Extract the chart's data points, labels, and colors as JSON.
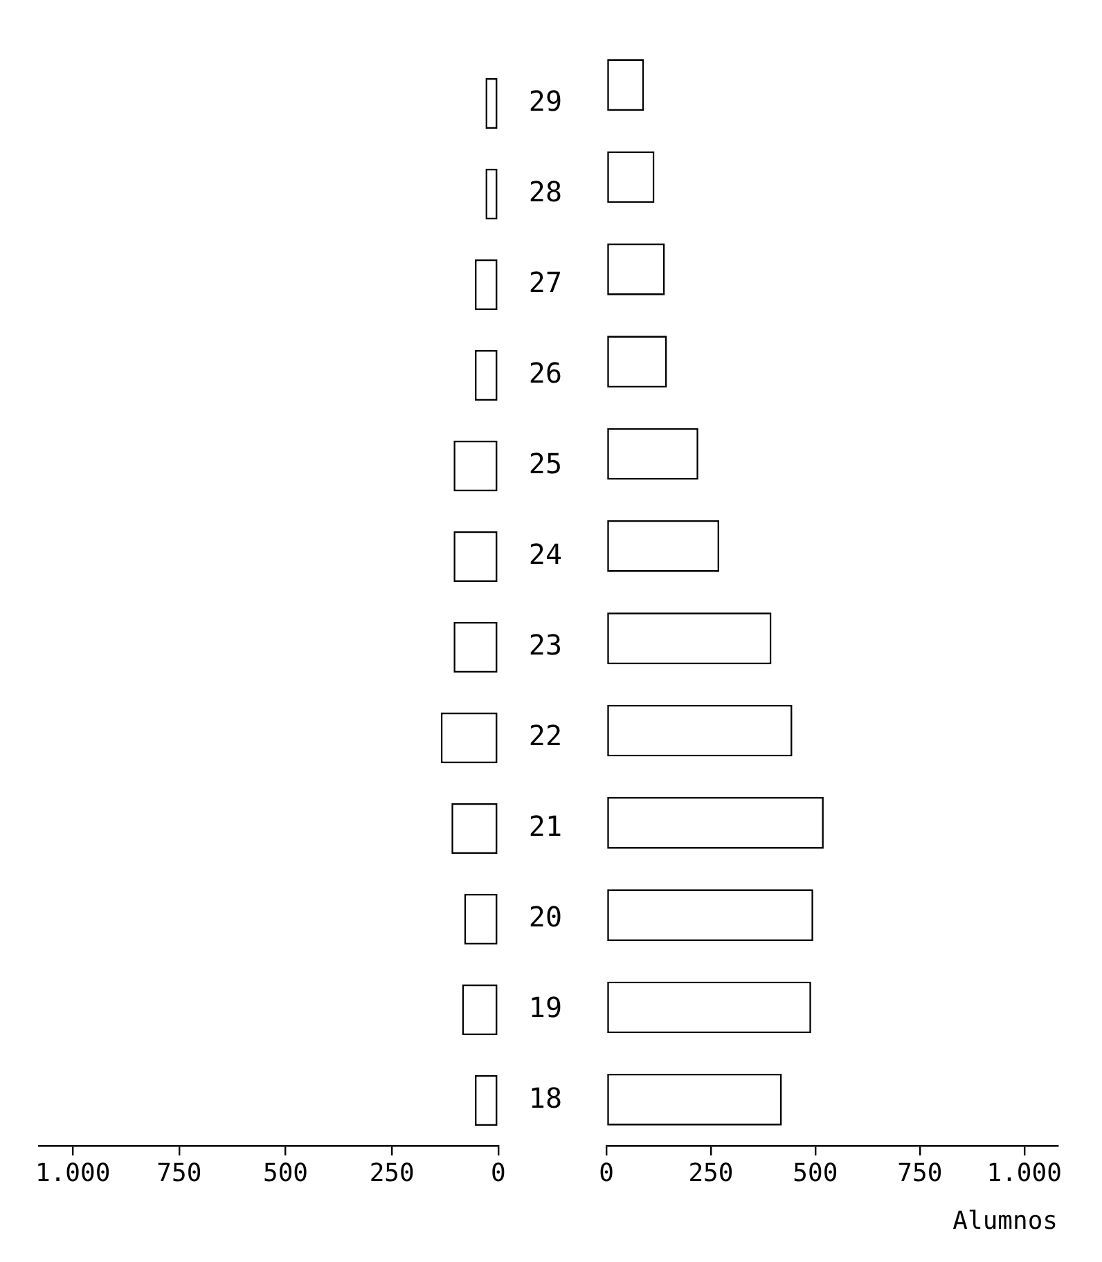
{
  "chart_data": [
    {
      "type": "bar",
      "orientation": "horizontal",
      "categories": [
        "29",
        "28",
        "27",
        "26",
        "25",
        "24",
        "23",
        "22",
        "21",
        "20",
        "19",
        "18"
      ],
      "values": [
        30,
        30,
        55,
        55,
        105,
        105,
        105,
        135,
        110,
        80,
        85,
        55
      ],
      "color": "#ffffff",
      "xlim": [
        1080,
        0
      ],
      "xticks": [
        {
          "value": 1000,
          "label": "1.000"
        },
        750,
        500,
        250,
        0
      ],
      "grid": false
    },
    {
      "type": "bar",
      "orientation": "horizontal",
      "categories": [
        "29",
        "28",
        "27",
        "26",
        "25",
        "24",
        "23",
        "22",
        "21",
        "20",
        "19",
        "18"
      ],
      "values": [
        90,
        115,
        140,
        145,
        220,
        270,
        395,
        445,
        520,
        495,
        490,
        420
      ],
      "color": "#ffffff",
      "xlim": [
        0,
        1080
      ],
      "xticks": [
        0,
        250,
        500,
        750,
        {
          "value": 1000,
          "label": "1.000"
        }
      ],
      "grid": false,
      "xlabel": "Alumnos",
      "tick_labels": "x"
    }
  ]
}
